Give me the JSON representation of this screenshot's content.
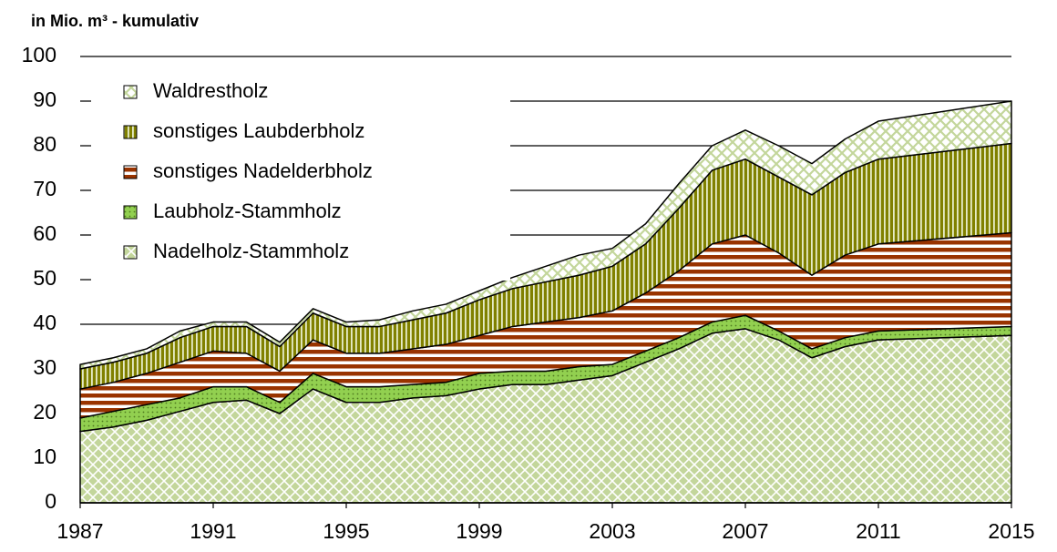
{
  "chart_data": {
    "type": "stacked-area",
    "title": "in Mio. m³ - kumulativ",
    "x": [
      1987,
      1988,
      1989,
      1990,
      1991,
      1992,
      1993,
      1994,
      1995,
      1996,
      1997,
      1998,
      1999,
      2000,
      2001,
      2002,
      2003,
      2004,
      2005,
      2006,
      2007,
      2008,
      2009,
      2010,
      2011,
      2015
    ],
    "series": [
      {
        "name": "Nadelholz-Stammholz",
        "color": "#c3d69b",
        "values": [
          16,
          17,
          18.5,
          20.5,
          22.5,
          23,
          20,
          25.5,
          22.5,
          22.5,
          23.5,
          24,
          25.5,
          26.5,
          26.5,
          27.5,
          28.5,
          31.5,
          34.5,
          38,
          39,
          36.5,
          32.5,
          35,
          36.5,
          37.5
        ]
      },
      {
        "name": "Laubholz-Stammholz",
        "color": "#92d050",
        "values": [
          3,
          3.5,
          3.5,
          3,
          3.5,
          3,
          2.5,
          3.5,
          3.5,
          3.5,
          3,
          3,
          3.5,
          3,
          3,
          3,
          2.5,
          2.5,
          2.5,
          2.5,
          3,
          2,
          2,
          2,
          2,
          2
        ]
      },
      {
        "name": "sonstiges Nadelderbholz",
        "color": "#993300",
        "values": [
          6.5,
          6.5,
          7,
          8,
          8,
          7.5,
          7,
          7.5,
          7.5,
          7.5,
          8,
          8.5,
          8.5,
          10,
          11,
          11,
          12,
          13,
          15,
          17.5,
          18,
          17.5,
          16.5,
          18.5,
          19.5,
          21
        ]
      },
      {
        "name": "sonstiges Laubderbholz",
        "color": "#808000",
        "values": [
          4.5,
          4.5,
          4.5,
          5.5,
          5.5,
          6,
          5.5,
          6,
          6,
          6,
          6.5,
          7,
          8,
          8.5,
          9,
          9.5,
          10,
          11,
          14,
          16.5,
          17,
          17,
          18,
          18.5,
          19,
          20
        ]
      },
      {
        "name": "Waldrestholz",
        "color": "#c3d69b",
        "values": [
          1,
          1,
          1,
          1.5,
          1,
          1,
          1,
          1,
          1,
          1.5,
          2,
          2,
          2,
          2.5,
          3.5,
          4.5,
          4,
          4.5,
          5.5,
          5.5,
          6.5,
          7,
          7,
          7.5,
          8.5,
          9.5
        ]
      }
    ],
    "xlim": [
      1987,
      2015
    ],
    "xticks": [
      1987,
      1991,
      1995,
      1999,
      2003,
      2007,
      2011,
      2015
    ],
    "ylim": [
      0,
      100
    ],
    "yticks": [
      0,
      10,
      20,
      30,
      40,
      50,
      60,
      70,
      80,
      90,
      100
    ],
    "grid": true,
    "legend": "top-left"
  }
}
